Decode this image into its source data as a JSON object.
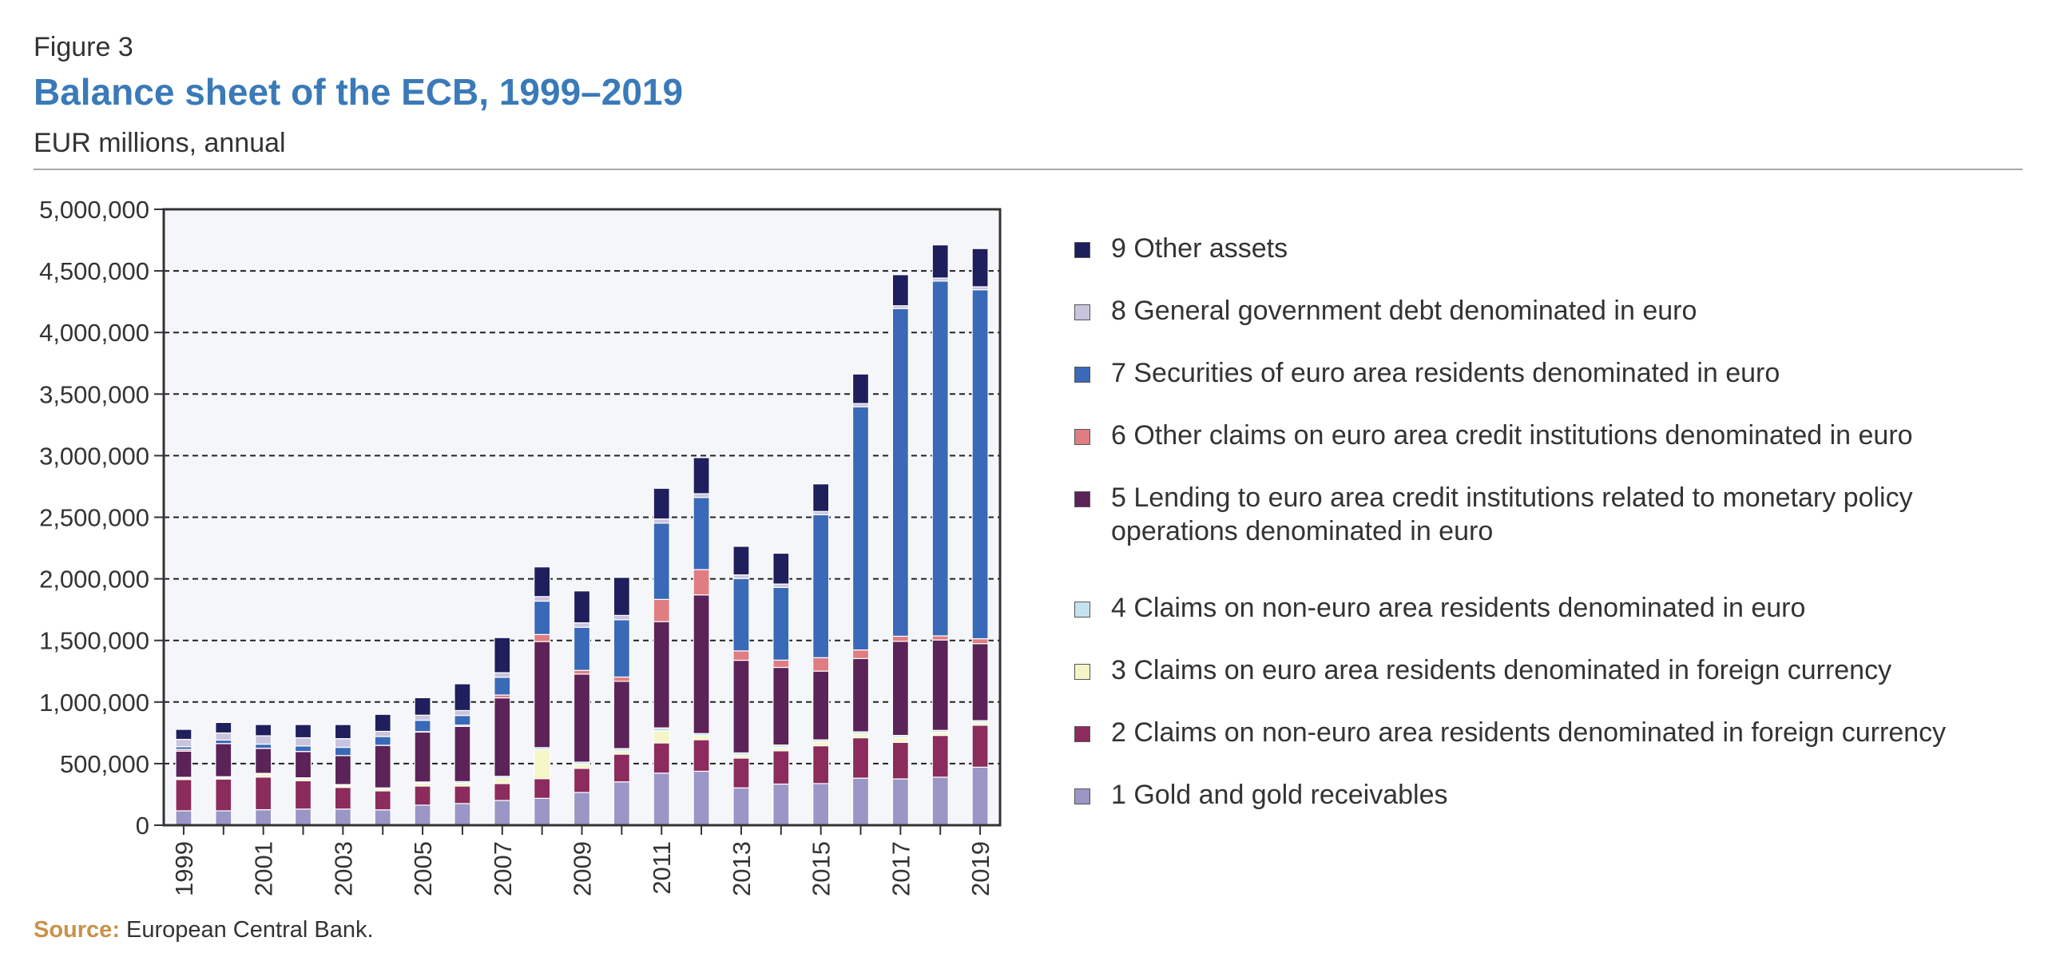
{
  "header": {
    "figure_label": "Figure 3",
    "title": "Balance sheet of the ECB, 1999–2019",
    "subtitle": "EUR millions, annual"
  },
  "source": {
    "label": "Source:",
    "text": "European Central Bank."
  },
  "colors": {
    "plot_background": "#f4f6f9",
    "grid": "#222222",
    "axis": "#333333"
  },
  "chart_data": {
    "type": "bar",
    "stacked": true,
    "title": "Balance sheet of the ECB, 1999–2019",
    "subtitle": "EUR millions, annual",
    "xlabel": "",
    "ylabel": "",
    "ylim": [
      0,
      5000000
    ],
    "y_ticks": [
      0,
      500000,
      1000000,
      1500000,
      2000000,
      2500000,
      3000000,
      3500000,
      4000000,
      4500000,
      5000000
    ],
    "y_tick_labels": [
      "0",
      "500,000",
      "1,000,000",
      "1,500,000",
      "2,000,000",
      "2,500,000",
      "3,000,000",
      "3,500,000",
      "4,000,000",
      "4,500,000",
      "5,000,000"
    ],
    "categories": [
      "1999",
      "2000",
      "2001",
      "2002",
      "2003",
      "2004",
      "2005",
      "2006",
      "2007",
      "2008",
      "2009",
      "2010",
      "2011",
      "2012",
      "2013",
      "2014",
      "2015",
      "2016",
      "2017",
      "2018",
      "2019"
    ],
    "x_tick_labels": [
      "1999",
      "2001",
      "2003",
      "2005",
      "2007",
      "2009",
      "2011",
      "2013",
      "2015",
      "2017",
      "2019"
    ],
    "grid": "horizontal dashed",
    "legend_position": "right",
    "series": [
      {
        "name": "1 Gold and gold receivables",
        "color": "#9a96c6",
        "values": [
          117000,
          117000,
          126000,
          131000,
          131000,
          125000,
          163000,
          176000,
          201000,
          218000,
          266000,
          352000,
          423000,
          438000,
          303000,
          334000,
          338000,
          382000,
          376000,
          390000,
          471000
        ]
      },
      {
        "name": "2 Claims on non-euro area residents denominated in foreign currency",
        "color": "#8b2c5c",
        "values": [
          254000,
          258000,
          265000,
          230000,
          176000,
          154000,
          155000,
          142000,
          137000,
          160000,
          196000,
          225000,
          245000,
          256000,
          242000,
          270000,
          307000,
          328000,
          297000,
          339000,
          341000
        ]
      },
      {
        "name": "3 Claims on euro area residents denominated in foreign currency",
        "color": "#f5f5c8",
        "values": [
          14000,
          15000,
          24000,
          19000,
          18000,
          17000,
          24000,
          23000,
          43000,
          234000,
          33000,
          26000,
          97000,
          33000,
          23000,
          28000,
          31000,
          30000,
          39000,
          25000,
          22000
        ]
      },
      {
        "name": "4 Claims on non-euro area residents denominated in euro",
        "color": "#c5e3ee",
        "values": [
          4000,
          4000,
          6000,
          5000,
          5000,
          7000,
          9000,
          13000,
          16000,
          18000,
          17000,
          19000,
          25000,
          17000,
          19000,
          19000,
          17000,
          18000,
          17000,
          16000,
          15000
        ]
      },
      {
        "name": "5 Lending to euro area credit institutions related to monetary policy operations denominated in euro",
        "color": "#5b2358",
        "values": [
          212000,
          268000,
          203000,
          213000,
          235000,
          345000,
          405000,
          448000,
          637000,
          861000,
          715000,
          546000,
          863000,
          1126000,
          752000,
          630000,
          558000,
          595000,
          764000,
          734000,
          625000
        ]
      },
      {
        "name": "6 Other claims on euro area credit institutions denominated in euro",
        "color": "#e07d82",
        "values": [
          14000,
          1000,
          1000,
          1000,
          1000,
          1000,
          4000,
          11000,
          23000,
          57000,
          30000,
          35000,
          180000,
          205000,
          76000,
          59000,
          109000,
          70000,
          41000,
          33000,
          40000
        ]
      },
      {
        "name": "7 Securities of euro area residents denominated in euro",
        "color": "#3a69b8",
        "values": [
          22000,
          28000,
          33000,
          44000,
          66000,
          71000,
          92000,
          78000,
          144000,
          271000,
          350000,
          465000,
          619000,
          586000,
          588000,
          591000,
          1161000,
          1974000,
          2660000,
          2880000,
          2833000
        ]
      },
      {
        "name": "8 General government debt denominated in euro",
        "color": "#c9c4de",
        "values": [
          60000,
          58000,
          68000,
          67000,
          71000,
          42000,
          41000,
          40000,
          37000,
          37000,
          36000,
          35000,
          34000,
          30000,
          29000,
          27000,
          26000,
          26000,
          23000,
          25000,
          24000
        ]
      },
      {
        "name": "9 Other assets",
        "color": "#1e1f5c",
        "values": [
          81000,
          85000,
          91000,
          107000,
          114000,
          138000,
          142000,
          217000,
          285000,
          241000,
          259000,
          309000,
          249000,
          293000,
          232000,
          250000,
          224000,
          240000,
          252000,
          269000,
          310000
        ]
      }
    ]
  }
}
